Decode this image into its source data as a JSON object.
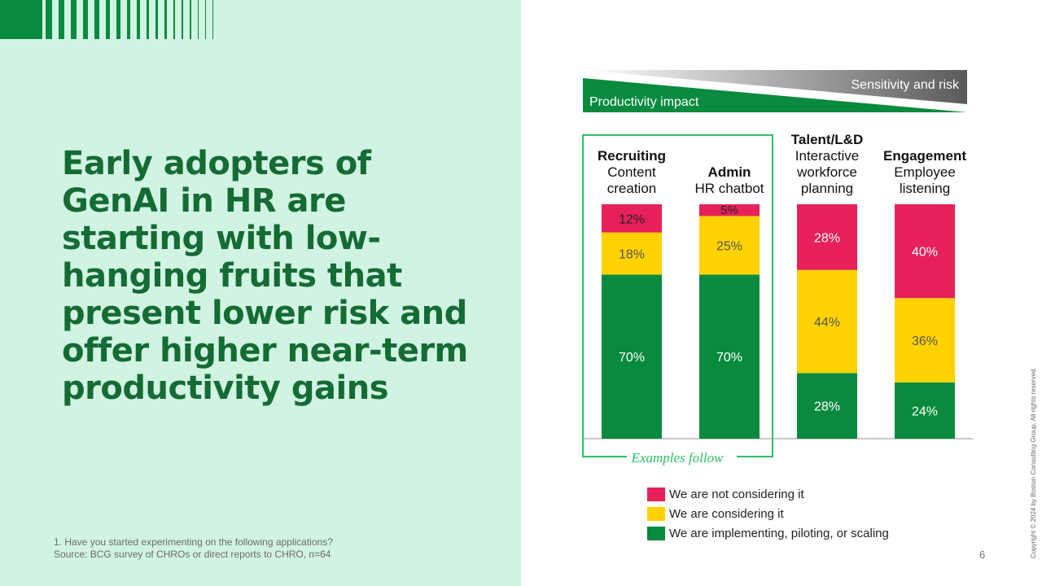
{
  "slide": {
    "title": "Early adopters of GenAI in HR are starting with low-hanging fruits that present lower risk and offer higher near-term productivity gains",
    "footnote_1": "1. Have you started experimenting on the following applications?",
    "footnote_2": "Source: BCG survey of CHROs or direct reports to CHRO, n=64",
    "page_number": "6",
    "copyright": "Copyright © 2024 by Boston Consulting Group. All rights reserved."
  },
  "colors": {
    "not_considering": "#e8205a",
    "considering": "#ffd200",
    "implementing": "#0a8a3e",
    "panel_bg": "#d0f3e2",
    "title": "#146b33",
    "highlight_box": "#2cc069"
  },
  "chart_data": {
    "type": "bar",
    "stacked": true,
    "orientation": "vertical",
    "scale_labels": {
      "top_right": "Sensitivity and risk",
      "bottom_left": "Productivity impact"
    },
    "categories": [
      {
        "group": "Recruiting",
        "name": "Content creation"
      },
      {
        "group": "",
        "name": "Admin HR chatbot"
      },
      {
        "group": "Talent/L&D",
        "name": "Interactive workforce planning"
      },
      {
        "group": "Engagement",
        "name": "Employee listening"
      }
    ],
    "series": [
      {
        "name": "We are implementing, piloting, or scaling",
        "color": "#0a8a3e",
        "values": [
          70,
          70,
          28,
          24
        ]
      },
      {
        "name": "We are considering it",
        "color": "#ffd200",
        "values": [
          18,
          25,
          44,
          36
        ]
      },
      {
        "name": "We are not considering it",
        "color": "#e8205a",
        "values": [
          12,
          5,
          28,
          40
        ]
      }
    ],
    "unit": "%",
    "highlight_label": "Examples follow",
    "highlight_categories": [
      0,
      1
    ],
    "ylim": [
      0,
      100
    ],
    "grid": false,
    "legend_position": "bottom"
  },
  "legend": [
    {
      "label": "We are not considering it",
      "color": "#e8205a"
    },
    {
      "label": "We are considering it",
      "color": "#ffd200"
    },
    {
      "label": "We are implementing, piloting, or scaling",
      "color": "#0a8a3e"
    }
  ]
}
